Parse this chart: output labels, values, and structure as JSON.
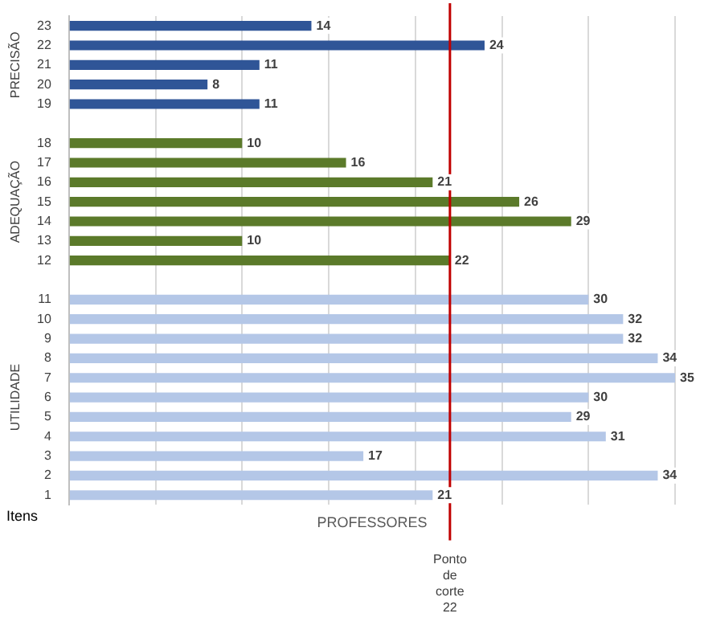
{
  "chart_data": {
    "type": "bar",
    "orientation": "horizontal",
    "categories": [
      "23",
      "22",
      "21",
      "20",
      "19",
      null,
      "18",
      "17",
      "16",
      "15",
      "14",
      "13",
      "12",
      null,
      "11",
      "10",
      "9",
      "8",
      "7",
      "6",
      "5",
      "4",
      "3",
      "2",
      "1"
    ],
    "values": [
      14,
      24,
      11,
      8,
      11,
      null,
      10,
      16,
      21,
      26,
      29,
      10,
      22,
      null,
      30,
      32,
      32,
      34,
      35,
      30,
      29,
      31,
      17,
      34,
      21
    ],
    "colors": [
      "#2f5597",
      "#2f5597",
      "#2f5597",
      "#2f5597",
      "#2f5597",
      null,
      "#5b7a2a",
      "#5b7a2a",
      "#5b7a2a",
      "#5b7a2a",
      "#5b7a2a",
      "#5b7a2a",
      "#5b7a2a",
      null,
      "#b4c7e7",
      "#b4c7e7",
      "#b4c7e7",
      "#b4c7e7",
      "#b4c7e7",
      "#b4c7e7",
      "#b4c7e7",
      "#b4c7e7",
      "#b4c7e7",
      "#b4c7e7",
      "#b4c7e7"
    ],
    "xlim": [
      0,
      35
    ],
    "xticks": [
      {
        "value": 0,
        "label": null
      },
      {
        "value": 5,
        "label": null
      },
      {
        "value": 10,
        "label": null
      },
      {
        "value": 15,
        "label": null
      },
      {
        "value": 20,
        "label": null
      },
      {
        "value": 25,
        "label": null
      },
      {
        "value": 30,
        "label": null
      },
      {
        "value": 35,
        "label": null
      }
    ],
    "xlabel": "PROFESSORES",
    "ylabel": "Itens",
    "annotations": [
      "PRECISÃO",
      "ADEQUAÇÃO",
      "UTILIDADE"
    ],
    "ref_lines": [
      {
        "axis": "x",
        "value": 22,
        "label": "Ponto de corte 22",
        "color": "#c00000"
      }
    ],
    "data_labels": true,
    "grid": "x",
    "legend": false,
    "tick_labels": "y"
  }
}
